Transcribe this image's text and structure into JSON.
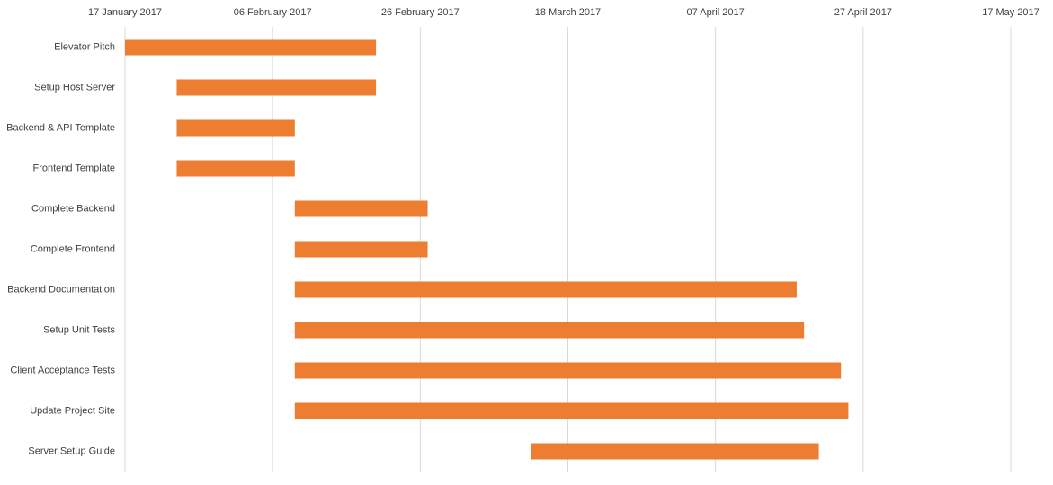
{
  "chart_data": {
    "type": "gantt",
    "categories": [
      "Elevator Pitch",
      "Setup Host Server",
      "Backend & API Template",
      "Frontend Template",
      "Complete Backend",
      "Complete Frontend",
      "Backend Documentation",
      "Setup Unit Tests",
      "Client Acceptance Tests",
      "Update Project Site",
      "Server Setup Guide"
    ],
    "start": [
      "2017-01-17",
      "2017-01-24",
      "2017-01-24",
      "2017-01-24",
      "2017-02-09",
      "2017-02-09",
      "2017-02-09",
      "2017-02-09",
      "2017-02-09",
      "2017-02-09",
      "2017-03-13"
    ],
    "end": [
      "2017-02-20",
      "2017-02-20",
      "2017-02-09",
      "2017-02-09",
      "2017-02-27",
      "2017-02-27",
      "2017-04-18",
      "2017-04-19",
      "2017-04-24",
      "2017-04-25",
      "2017-04-21"
    ],
    "color": "#ed7d31",
    "xlim": [
      "2017-01-17",
      "2017-05-17"
    ],
    "xticks": [
      {
        "value": "2017-01-17",
        "label": "17 January 2017"
      },
      {
        "value": "2017-02-06",
        "label": "06 February 2017"
      },
      {
        "value": "2017-02-26",
        "label": "26 February 2017"
      },
      {
        "value": "2017-03-18",
        "label": "18 March 2017"
      },
      {
        "value": "2017-04-07",
        "label": "07 April 2017"
      },
      {
        "value": "2017-04-27",
        "label": "27 April 2017"
      },
      {
        "value": "2017-05-17",
        "label": "17 May 2017"
      }
    ],
    "grid": true
  }
}
